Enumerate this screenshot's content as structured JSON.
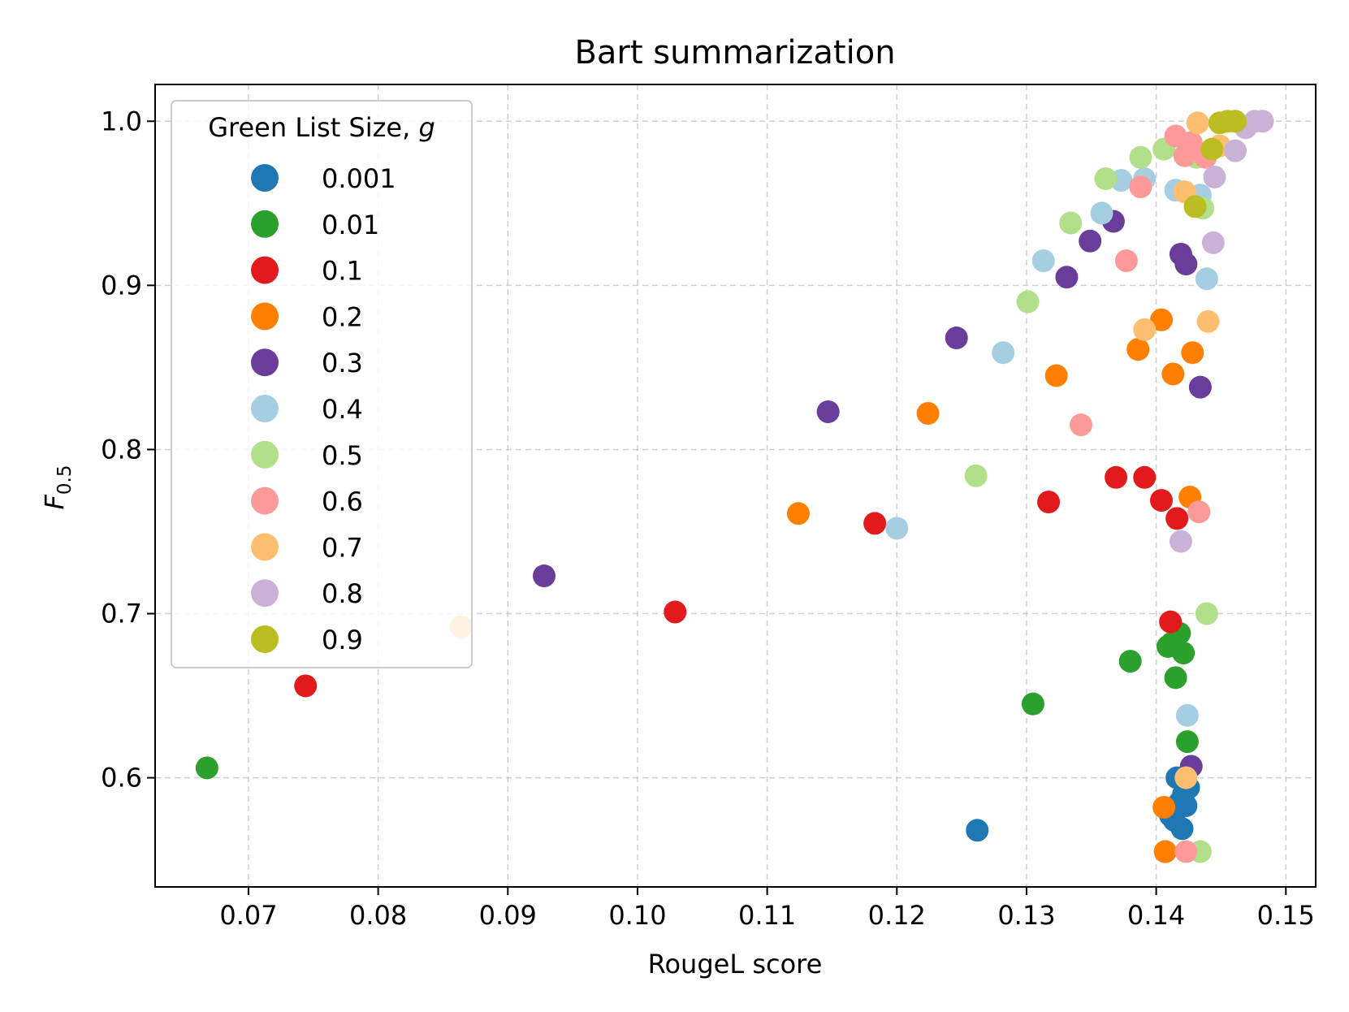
{
  "chart_data": {
    "type": "scatter",
    "title": "Bart summarization",
    "xlabel": "RougeL score",
    "ylabel": "F",
    "ylabel_sub": "0.5",
    "xlim": [
      0.0628,
      0.1523
    ],
    "ylim": [
      0.5335,
      1.0224
    ],
    "xticks": [
      0.07,
      0.08,
      0.09,
      0.1,
      0.11,
      0.12,
      0.13,
      0.14,
      0.15
    ],
    "xtick_labels": [
      "0.07",
      "0.08",
      "0.09",
      "0.10",
      "0.11",
      "0.12",
      "0.13",
      "0.14",
      "0.15"
    ],
    "yticks": [
      0.6,
      0.7,
      0.8,
      0.9,
      1.0
    ],
    "ytick_labels": [
      "0.6",
      "0.7",
      "0.8",
      "0.9",
      "1.0"
    ],
    "grid": true,
    "legend": {
      "title": "Green List Size, ",
      "title_var": "g",
      "placement": "upper-left"
    },
    "series": [
      {
        "name": "0.001",
        "color": "#1f77b4",
        "points": [
          [
            0.1262,
            0.568
          ],
          [
            0.1416,
            0.6
          ],
          [
            0.1421,
            0.59
          ],
          [
            0.1425,
            0.594
          ],
          [
            0.1411,
            0.577
          ],
          [
            0.1423,
            0.583
          ],
          [
            0.142,
            0.569
          ],
          [
            0.1418,
            0.585
          ],
          [
            0.1414,
            0.574
          ]
        ]
      },
      {
        "name": "0.01",
        "color": "#2ca02c",
        "points": [
          [
            0.0668,
            0.606
          ],
          [
            0.1305,
            0.645
          ],
          [
            0.138,
            0.671
          ],
          [
            0.1409,
            0.68
          ],
          [
            0.1418,
            0.688
          ],
          [
            0.1421,
            0.676
          ],
          [
            0.1415,
            0.661
          ],
          [
            0.1424,
            0.622
          ],
          [
            0.1412,
            0.682
          ]
        ]
      },
      {
        "name": "0.1",
        "color": "#e31a1c",
        "points": [
          [
            0.0744,
            0.656
          ],
          [
            0.1029,
            0.701
          ],
          [
            0.1183,
            0.755
          ],
          [
            0.1317,
            0.768
          ],
          [
            0.1369,
            0.783
          ],
          [
            0.1391,
            0.783
          ],
          [
            0.1404,
            0.769
          ],
          [
            0.1416,
            0.758
          ],
          [
            0.1411,
            0.695
          ],
          [
            0.1407,
            0.555
          ]
        ]
      },
      {
        "name": "0.2",
        "color": "#ff7f00",
        "points": [
          [
            0.1124,
            0.761
          ],
          [
            0.1224,
            0.822
          ],
          [
            0.1323,
            0.845
          ],
          [
            0.1386,
            0.861
          ],
          [
            0.1404,
            0.879
          ],
          [
            0.1413,
            0.846
          ],
          [
            0.1428,
            0.859
          ],
          [
            0.1426,
            0.771
          ],
          [
            0.1406,
            0.582
          ],
          [
            0.1407,
            0.555
          ]
        ]
      },
      {
        "name": "0.3",
        "color": "#6a3d9a",
        "points": [
          [
            0.0928,
            0.723
          ],
          [
            0.1147,
            0.823
          ],
          [
            0.1246,
            0.868
          ],
          [
            0.1331,
            0.905
          ],
          [
            0.1349,
            0.927
          ],
          [
            0.1367,
            0.939
          ],
          [
            0.1419,
            0.919
          ],
          [
            0.1423,
            0.913
          ],
          [
            0.1434,
            0.838
          ],
          [
            0.1427,
            0.607
          ]
        ]
      },
      {
        "name": "0.4",
        "color": "#a6cee3",
        "points": [
          [
            0.12,
            0.752
          ],
          [
            0.1282,
            0.859
          ],
          [
            0.1313,
            0.915
          ],
          [
            0.1358,
            0.944
          ],
          [
            0.1373,
            0.964
          ],
          [
            0.1391,
            0.965
          ],
          [
            0.1415,
            0.958
          ],
          [
            0.1434,
            0.955
          ],
          [
            0.1439,
            0.904
          ],
          [
            0.1424,
            0.638
          ]
        ]
      },
      {
        "name": "0.5",
        "color": "#b2df8a",
        "points": [
          [
            0.1261,
            0.784
          ],
          [
            0.1301,
            0.89
          ],
          [
            0.1334,
            0.938
          ],
          [
            0.1361,
            0.965
          ],
          [
            0.1388,
            0.978
          ],
          [
            0.1406,
            0.983
          ],
          [
            0.1431,
            0.978
          ],
          [
            0.1436,
            0.947
          ],
          [
            0.1439,
            0.7
          ],
          [
            0.1434,
            0.555
          ]
        ]
      },
      {
        "name": "0.6",
        "color": "#fb9a99",
        "points": [
          [
            0.1342,
            0.815
          ],
          [
            0.1377,
            0.915
          ],
          [
            0.1388,
            0.96
          ],
          [
            0.1415,
            0.991
          ],
          [
            0.1422,
            0.979
          ],
          [
            0.1427,
            0.987
          ],
          [
            0.1438,
            0.978
          ],
          [
            0.1433,
            0.762
          ],
          [
            0.1423,
            0.555
          ]
        ]
      },
      {
        "name": "0.7",
        "color": "#fdbf6f",
        "points": [
          [
            0.0864,
            0.692
          ],
          [
            0.1391,
            0.873
          ],
          [
            0.1422,
            0.957
          ],
          [
            0.1432,
            0.999
          ],
          [
            0.144,
            0.878
          ],
          [
            0.1449,
            0.985
          ],
          [
            0.1423,
            0.6
          ]
        ]
      },
      {
        "name": "0.8",
        "color": "#cab2d6",
        "points": [
          [
            0.1419,
            0.744
          ],
          [
            0.1444,
            0.926
          ],
          [
            0.1445,
            0.966
          ],
          [
            0.1461,
            0.982
          ],
          [
            0.1469,
            0.996
          ],
          [
            0.1476,
            1.0
          ],
          [
            0.1482,
            1.0
          ]
        ]
      },
      {
        "name": "0.9",
        "color": "#bcbd22",
        "points": [
          [
            0.143,
            0.948
          ],
          [
            0.1443,
            0.983
          ],
          [
            0.1449,
            0.999
          ],
          [
            0.1455,
            1.0
          ],
          [
            0.1461,
            1.0
          ]
        ]
      }
    ]
  }
}
